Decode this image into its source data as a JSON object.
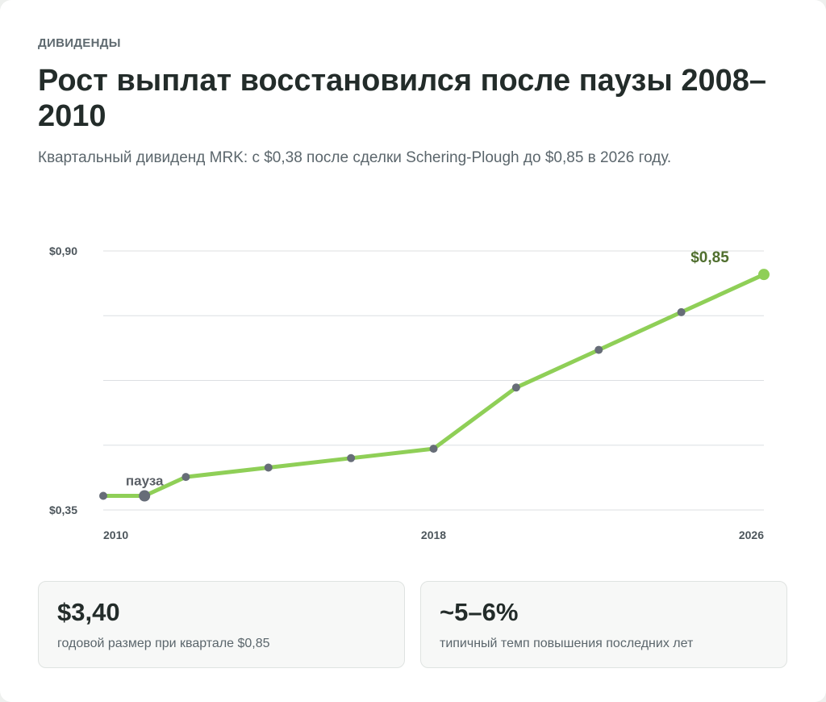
{
  "header": {
    "eyebrow": "ДИВИДЕНДЫ",
    "title": "Рост выплат восстановился после паузы 2008–2010",
    "subtitle": "Квартальный дивиденд MRK: с $0,38 после сделки Schering-Plough до $0,85 в 2026 году."
  },
  "colors": {
    "line": "#8fcf57",
    "point": "#676d78",
    "grid": "#dcdfe2",
    "value_label": "#4f6e2e"
  },
  "chart_data": {
    "type": "line",
    "title": "",
    "xlabel": "",
    "ylabel": "",
    "x": [
      2010,
      2011,
      2012,
      2014,
      2016,
      2018,
      2020,
      2022,
      2024,
      2026
    ],
    "values": [
      0.38,
      0.38,
      0.42,
      0.44,
      0.46,
      0.48,
      0.61,
      0.69,
      0.77,
      0.85
    ],
    "xlim": [
      2010,
      2026
    ],
    "ylim": [
      0.35,
      0.9
    ],
    "y_ticks": [
      {
        "value": 0.9,
        "label": "$0,90"
      },
      {
        "value": 0.35,
        "label": "$0,35"
      }
    ],
    "y_gridlines": [
      0.35,
      0.4875,
      0.625,
      0.7625,
      0.9
    ],
    "x_ticks": [
      {
        "value": 2010,
        "label": "2010"
      },
      {
        "value": 2018,
        "label": "2018"
      },
      {
        "value": 2026,
        "label": "2026"
      }
    ],
    "annotations": [
      {
        "x": 2011,
        "y": 0.38,
        "text": "пауза"
      },
      {
        "x": 2026,
        "y": 0.85,
        "text": "$0,85"
      }
    ],
    "grid": true,
    "legend": "none"
  },
  "kpis": [
    {
      "value": "$3,40",
      "label": "годовой размер при квартале $0,85"
    },
    {
      "value": "~5–6%",
      "label": "типичный темп повышения последних лет"
    }
  ]
}
